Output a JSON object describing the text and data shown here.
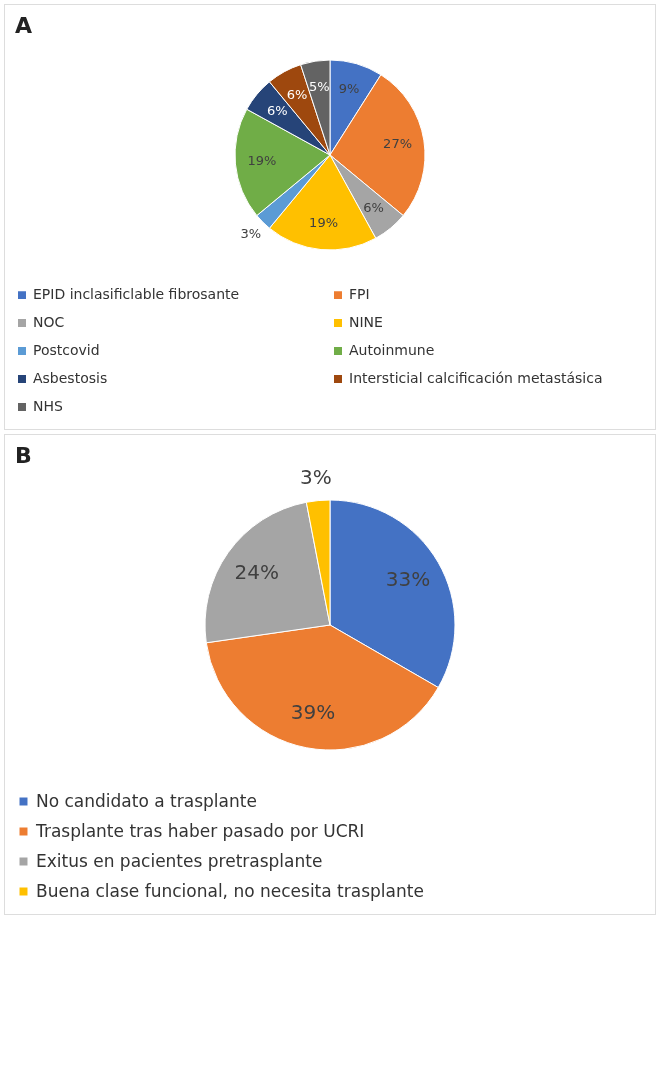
{
  "chart_data": [
    {
      "type": "pie",
      "title": "A",
      "categories": [
        "EPID inclasificlable fibrosante",
        "FPI",
        "NOC",
        "NINE",
        "Postcovid",
        "Autoinmune",
        "Asbestosis",
        "Intersticial calcificación metastásica",
        "NHS"
      ],
      "values": [
        9,
        27,
        6,
        19,
        3,
        19,
        6,
        6,
        5
      ],
      "colors": [
        "#4472c4",
        "#ed7d31",
        "#a5a5a5",
        "#ffc000",
        "#5b9bd5",
        "#70ad47",
        "#264478",
        "#9e480e",
        "#636363"
      ],
      "value_labels": [
        "9%",
        "27%",
        "6%",
        "19%",
        "3%",
        "19%",
        "6%",
        "6%",
        "5%"
      ],
      "legend": "bottom"
    },
    {
      "type": "pie",
      "title": "B",
      "categories": [
        "No candidato a trasplante",
        "Trasplante tras haber pasado por UCRI",
        "Exitus en pacientes pretrasplante",
        "Buena clase funcional, no necesita trasplante"
      ],
      "values": [
        33,
        39,
        24,
        3
      ],
      "colors": [
        "#4472c4",
        "#ed7d31",
        "#a5a5a5",
        "#ffc000"
      ],
      "value_labels": [
        "33%",
        "39%",
        "24%",
        "3%"
      ],
      "legend": "bottom"
    }
  ]
}
